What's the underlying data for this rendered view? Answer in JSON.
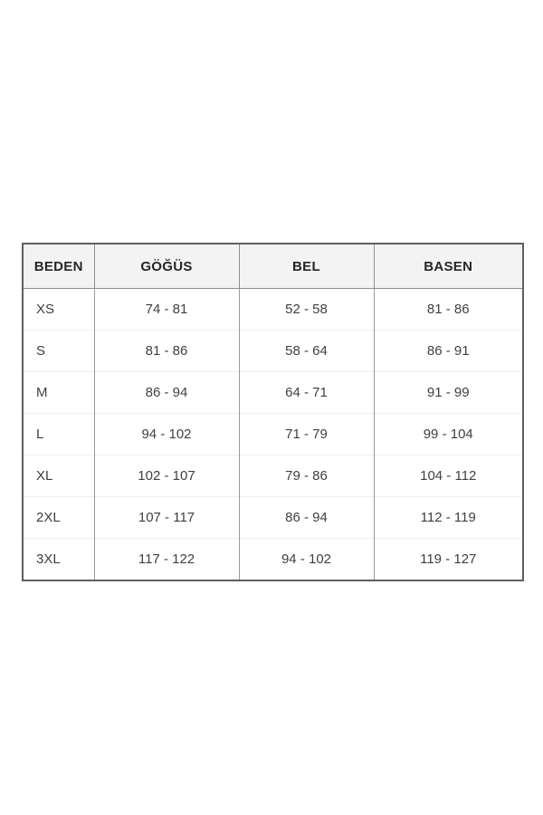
{
  "table": {
    "columns": [
      "BEDEN",
      "GÖĞÜS",
      "BEL",
      "BASEN"
    ],
    "rows": [
      [
        "XS",
        "74 - 81",
        "52 - 58",
        "81 - 86"
      ],
      [
        "S",
        "81 - 86",
        "58 - 64",
        "86 - 91"
      ],
      [
        "M",
        "86 - 94",
        "64 - 71",
        "91 - 99"
      ],
      [
        "L",
        "94 - 102",
        "71 - 79",
        "99 - 104"
      ],
      [
        "XL",
        "102 - 107",
        "79 - 86",
        "104 - 112"
      ],
      [
        "2XL",
        "107 - 117",
        "86 - 94",
        "112 - 119"
      ],
      [
        "3XL",
        "117 - 122",
        "94 - 102",
        "119 - 127"
      ]
    ],
    "colors": {
      "header_background": "#f3f3f3",
      "outer_border": "#5f5f5f",
      "column_separator": "#9a9a9a",
      "row_separator": "#ededed",
      "header_text": "#262626",
      "body_text": "#3f3f3f",
      "page_background": "#ffffff"
    }
  }
}
